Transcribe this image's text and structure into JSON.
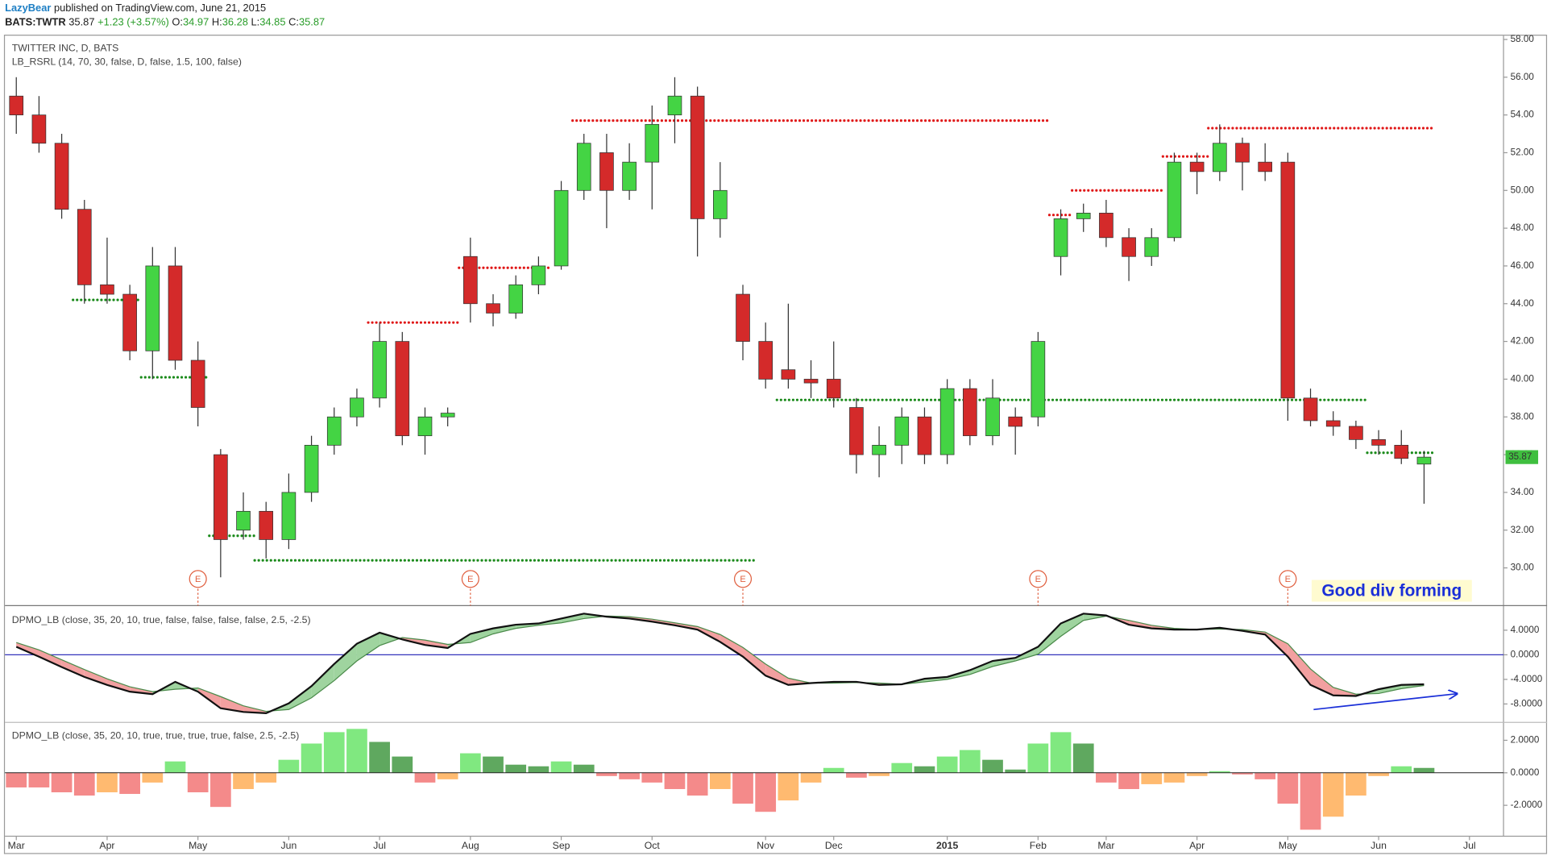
{
  "header": {
    "author": "LazyBear",
    "published": "published on TradingView.com, June 21, 2015",
    "symbol": "BATS:TWTR",
    "last": "35.87",
    "change": "+1.23 (+3.57%)",
    "ohlc": [
      {
        "label": "O:",
        "value": "34.97"
      },
      {
        "label": "H:",
        "value": "36.28"
      },
      {
        "label": "L:",
        "value": "34.85"
      },
      {
        "label": "C:",
        "value": "35.87"
      }
    ]
  },
  "chart_data": [
    {
      "type": "candlestick",
      "title": "TWITTER INC, D, BATS",
      "indicator": "LB_RSRL (14, 70, 30, false, D, false, 1.5, 100, false)",
      "annotation": "Good div forming",
      "categories": [
        "Mar",
        null,
        null,
        null,
        "Apr",
        null,
        null,
        null,
        "May",
        null,
        null,
        null,
        "Jun",
        null,
        null,
        null,
        "Jul",
        null,
        null,
        null,
        "Aug",
        null,
        null,
        null,
        "Sep",
        null,
        null,
        null,
        "Oct",
        null,
        null,
        null,
        null,
        "Nov",
        null,
        null,
        "Dec",
        null,
        null,
        null,
        null,
        "2015",
        null,
        null,
        null,
        "Feb",
        null,
        null,
        "Mar",
        null,
        null,
        null,
        "Apr",
        null,
        null,
        null,
        "May",
        null,
        null,
        null,
        "Jun",
        null,
        null,
        null,
        "Jul",
        null
      ],
      "open": [
        55,
        54,
        52.5,
        49,
        45,
        44.5,
        41.5,
        46,
        41,
        36,
        32,
        33,
        31.5,
        34,
        36.5,
        38,
        39,
        42,
        37,
        38,
        46.5,
        44,
        43.5,
        45,
        46,
        50,
        52,
        50,
        51.5,
        54,
        55,
        48.5,
        44.5,
        42,
        40.5,
        40,
        40,
        38.5,
        36,
        36.5,
        38,
        36,
        39.5,
        37,
        38,
        38,
        46.5,
        48.5,
        48.8,
        47.5,
        46.5,
        47.5,
        51.5,
        51,
        52.5,
        51.5,
        51.5,
        39,
        37.8,
        37.5,
        36.8,
        36.5,
        35.5,
        null,
        null,
        null
      ],
      "high": [
        56,
        55,
        53,
        49.5,
        47.5,
        45,
        47,
        47,
        42,
        36.3,
        34,
        33.5,
        35,
        37,
        38.5,
        39.5,
        43,
        42.5,
        38.5,
        38.5,
        47.5,
        44.5,
        45.5,
        46.5,
        50.5,
        53,
        53,
        52.5,
        54.5,
        56,
        55.5,
        51.5,
        45,
        43,
        44,
        41,
        42,
        39,
        37.5,
        38.5,
        38.5,
        40,
        40,
        40,
        38.5,
        42.5,
        49,
        49.3,
        49.5,
        48,
        48,
        52,
        52,
        53.5,
        52.8,
        52.5,
        52,
        39.5,
        38.3,
        37.8,
        37.3,
        37.3,
        36.2,
        null,
        null,
        null
      ],
      "low": [
        53,
        52,
        48.5,
        44,
        44,
        41,
        40,
        40.5,
        37.5,
        29.5,
        31.5,
        30.5,
        31,
        33.5,
        36,
        37.5,
        38.5,
        36.5,
        36,
        37.5,
        43,
        42.8,
        43.2,
        44.5,
        45.8,
        49.5,
        48,
        49.5,
        49,
        52.5,
        46.5,
        47.5,
        41,
        39.5,
        39.5,
        39,
        38.5,
        35,
        34.8,
        35.5,
        35.5,
        35.5,
        36.5,
        36.5,
        36,
        37.5,
        45.5,
        47.8,
        47,
        45.2,
        46,
        47.3,
        49.8,
        50.5,
        50,
        50.5,
        37.8,
        37.5,
        37,
        36.3,
        36,
        35.5,
        33.4,
        null,
        null,
        null
      ],
      "close": [
        54,
        52.5,
        49,
        45,
        44.5,
        41.5,
        46,
        41,
        38.5,
        31.5,
        33,
        31.5,
        34,
        36.5,
        38,
        39,
        42,
        37,
        38,
        38.2,
        44,
        43.5,
        45,
        46,
        50,
        52.5,
        50,
        51.5,
        53.5,
        55,
        48.5,
        50,
        42,
        40,
        40,
        39.8,
        39,
        36,
        36.5,
        38,
        36,
        39.5,
        37,
        39,
        37.5,
        42,
        48.5,
        48.8,
        47.5,
        46.5,
        47.5,
        51.5,
        51,
        52.5,
        51.5,
        51,
        39,
        37.8,
        37.5,
        36.8,
        36.5,
        35.8,
        35.87,
        null,
        null,
        null
      ],
      "support": [
        null,
        null,
        null,
        44.2,
        44.2,
        44.2,
        40.1,
        40.1,
        40.1,
        31.7,
        31.7,
        30.4,
        30.4,
        30.4,
        30.4,
        30.4,
        30.4,
        30.4,
        30.4,
        30.4,
        30.4,
        30.4,
        30.4,
        30.4,
        30.4,
        30.4,
        30.4,
        30.4,
        30.4,
        30.4,
        30.4,
        30.4,
        30.4,
        null,
        38.9,
        38.9,
        38.9,
        38.9,
        38.9,
        38.9,
        38.9,
        38.9,
        38.9,
        38.9,
        38.9,
        38.9,
        38.9,
        38.9,
        38.9,
        38.9,
        38.9,
        38.9,
        38.9,
        38.9,
        38.9,
        38.9,
        38.9,
        38.9,
        38.9,
        38.9,
        36.1,
        36.1,
        36.1,
        null,
        null,
        null
      ],
      "resistance": [
        null,
        null,
        null,
        null,
        null,
        null,
        null,
        null,
        null,
        null,
        null,
        null,
        null,
        null,
        null,
        null,
        43,
        43,
        43,
        43,
        45.9,
        45.9,
        45.9,
        45.9,
        null,
        53.7,
        53.7,
        53.7,
        53.7,
        53.7,
        53.7,
        53.7,
        53.7,
        53.7,
        53.7,
        53.7,
        53.7,
        53.7,
        53.7,
        53.7,
        53.7,
        53.7,
        53.7,
        53.7,
        53.7,
        53.7,
        48.7,
        50,
        50,
        50,
        50,
        51.8,
        51.8,
        53.3,
        53.3,
        53.3,
        53.3,
        53.3,
        53.3,
        53.3,
        53.3,
        53.3,
        53.3,
        null,
        null,
        null
      ],
      "events": [
        null,
        null,
        null,
        null,
        null,
        null,
        null,
        null,
        "E",
        null,
        null,
        null,
        null,
        null,
        null,
        null,
        null,
        null,
        null,
        null,
        "E",
        null,
        null,
        null,
        null,
        null,
        null,
        null,
        null,
        null,
        null,
        null,
        "E",
        null,
        null,
        null,
        null,
        null,
        null,
        null,
        null,
        null,
        null,
        null,
        null,
        "E",
        null,
        null,
        null,
        null,
        null,
        null,
        null,
        null,
        null,
        null,
        "E",
        null,
        null,
        null,
        null,
        null,
        null,
        null,
        null,
        null
      ],
      "up_color": "#44d444",
      "down_color": "#d42a2a",
      "support_color": "#1a8a1a",
      "resistance_color": "#e01818",
      "last_color": "#3fbf3f",
      "ylim": [
        28,
        58.2
      ],
      "grid": false,
      "yticks": [
        {
          "value": 30,
          "label": "30.00"
        },
        {
          "value": 32,
          "label": "32.00"
        },
        {
          "value": 34,
          "label": "34.00"
        },
        {
          "value": 36,
          "label": "36.00"
        },
        {
          "value": 38,
          "label": "38.00"
        },
        {
          "value": 40,
          "label": "40.00"
        },
        {
          "value": 42,
          "label": "42.00"
        },
        {
          "value": 44,
          "label": "44.00"
        },
        {
          "value": 46,
          "label": "46.00"
        },
        {
          "value": 48,
          "label": "48.00"
        },
        {
          "value": 50,
          "label": "50.00"
        },
        {
          "value": 52,
          "label": "52.00"
        },
        {
          "value": 54,
          "label": "54.00"
        },
        {
          "value": 56,
          "label": "56.00"
        },
        {
          "value": 58,
          "label": "58.00"
        }
      ]
    },
    {
      "type": "line",
      "title": "DPMO_LB (close, 35, 20, 10, true, false, false, false, false, 2.5, -2.5)",
      "series": [
        {
          "color": "#111111",
          "values": [
            1.3,
            -0.3,
            -2,
            -3.6,
            -4.9,
            -6,
            -6.4,
            -4.4,
            -6,
            -8.7,
            -9.3,
            -9.5,
            -7.9,
            -5.1,
            -1.5,
            1.8,
            3.6,
            2.5,
            1.6,
            1.1,
            3.4,
            4.3,
            4.9,
            5.1,
            5.9,
            6.7,
            6.2,
            5.9,
            5.4,
            4.8,
            4.1,
            2.1,
            -0.3,
            -3.4,
            -4.9,
            -4.6,
            -4.4,
            -4.4,
            -4.9,
            -4.8,
            -3.9,
            -3.6,
            -2.5,
            -1,
            -0.5,
            1.3,
            5.1,
            6.7,
            6.4,
            4.9,
            4.3,
            4.1,
            4.1,
            4.4,
            3.9,
            3.3,
            -0.3,
            -4.9,
            -6.6,
            -6.7,
            -5.6,
            -4.9,
            -4.8,
            null,
            null,
            null
          ]
        },
        {
          "color": "#4a8a4a",
          "values": [
            2.0,
            0.8,
            -0.8,
            -2.4,
            -3.9,
            -5.2,
            -6.0,
            -5.6,
            -5.4,
            -6.8,
            -8.3,
            -9.2,
            -8.9,
            -7.0,
            -4.2,
            -1.0,
            1.5,
            2.8,
            2.4,
            1.7,
            2.0,
            3.4,
            4.3,
            4.8,
            5.2,
            5.9,
            6.3,
            6.2,
            5.8,
            5.2,
            4.6,
            3.3,
            1.2,
            -1.5,
            -3.8,
            -4.6,
            -4.6,
            -4.5,
            -4.6,
            -4.8,
            -4.4,
            -4.0,
            -3.2,
            -1.9,
            -1.0,
            0.1,
            3.0,
            5.6,
            6.3,
            5.6,
            4.8,
            4.3,
            4.1,
            4.2,
            4.1,
            3.7,
            1.8,
            -2.3,
            -5.3,
            -6.4,
            -6.3,
            -5.5,
            -5.0,
            null,
            null,
            null
          ]
        }
      ],
      "fill_above": "#9fd49f",
      "fill_below": "#f2a0a0",
      "zero_line_color": "#3333bb",
      "ylim": [
        -11,
        8
      ],
      "grid": false,
      "yticks": [
        {
          "value": 4,
          "label": "4.0000"
        },
        {
          "value": 0,
          "label": "0.0000"
        },
        {
          "value": -4,
          "label": "-4.0000"
        },
        {
          "value": -8,
          "label": "-8.0000"
        }
      ]
    },
    {
      "type": "bar",
      "title": "DPMO_LB (close, 35, 20, 10, true, true, true, true, false, 2.5, -2.5)",
      "values": [
        -0.9,
        -0.9,
        -1.2,
        -1.4,
        -1.2,
        -1.3,
        -0.6,
        0.7,
        -1.2,
        -2.1,
        -1.0,
        -0.6,
        0.8,
        1.8,
        2.5,
        2.7,
        1.9,
        1.0,
        -0.6,
        -0.4,
        1.2,
        1.0,
        0.5,
        0.4,
        0.7,
        0.5,
        -0.2,
        -0.4,
        -0.6,
        -1.0,
        -1.4,
        -1.0,
        -1.9,
        -2.4,
        -1.7,
        -0.6,
        0.3,
        -0.3,
        -0.2,
        0.6,
        0.4,
        1.0,
        1.4,
        0.8,
        0.2,
        1.8,
        2.5,
        1.8,
        -0.6,
        -1.0,
        -0.7,
        -0.6,
        -0.2,
        0.1,
        -0.1,
        -0.4,
        -1.9,
        -3.5,
        -2.7,
        -1.4,
        -0.2,
        0.4,
        0.3,
        null,
        null,
        null
      ],
      "colors": {
        "rising_above": "#80e880",
        "falling_above": "#5fa85f",
        "falling_below": "#f48a8a",
        "rising_below": "#ffba70"
      },
      "ylim": [
        -3.9,
        3.1
      ],
      "grid": false,
      "yticks": [
        {
          "value": 2,
          "label": "2.0000"
        },
        {
          "value": 0,
          "label": "0.0000"
        },
        {
          "value": -2,
          "label": "-2.0000"
        }
      ]
    }
  ]
}
